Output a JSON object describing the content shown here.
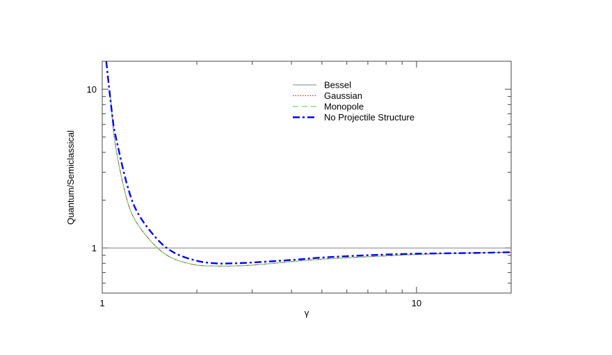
{
  "chart_data": {
    "type": "line",
    "xlabel": "γ",
    "ylabel": "Quantum/Semiclassical",
    "xscale": "log",
    "yscale": "log",
    "xlim": [
      1,
      20
    ],
    "ylim": [
      0.52,
      15
    ],
    "x_tick_labels": [
      {
        "value": 1,
        "label": "1"
      },
      {
        "value": 10,
        "label": "10"
      }
    ],
    "y_tick_labels": [
      {
        "value": 1,
        "label": "1"
      },
      {
        "value": 10,
        "label": "10"
      }
    ],
    "reference_line": {
      "y": 1,
      "color": "#808080"
    },
    "legend_position": "top-right",
    "series": [
      {
        "name": "Bessel",
        "style": "solid",
        "color": "#808080",
        "x": [
          1.06,
          1.1,
          1.2,
          1.3,
          1.5,
          1.7,
          2.0,
          2.3,
          2.6,
          3.0,
          4.0,
          5.0,
          7.0,
          10.0,
          15.0,
          20.0
        ],
        "y": [
          9.5,
          4.5,
          2.0,
          1.4,
          1.0,
          0.85,
          0.78,
          0.77,
          0.77,
          0.78,
          0.82,
          0.85,
          0.88,
          0.91,
          0.93,
          0.94
        ]
      },
      {
        "name": "Gaussian",
        "style": "dotted",
        "color": "#ff0000",
        "x": [
          1.06,
          1.1,
          1.2,
          1.3,
          1.5,
          1.7,
          2.0,
          2.3,
          2.6,
          3.0,
          4.0,
          5.0,
          7.0,
          10.0,
          15.0,
          20.0
        ],
        "y": [
          9.5,
          4.5,
          2.0,
          1.4,
          1.0,
          0.85,
          0.78,
          0.77,
          0.77,
          0.78,
          0.82,
          0.85,
          0.88,
          0.91,
          0.93,
          0.94
        ]
      },
      {
        "name": "Monopole",
        "style": "dashed",
        "color": "#66dd66",
        "x": [
          1.06,
          1.1,
          1.2,
          1.3,
          1.5,
          1.7,
          2.0,
          2.3,
          2.6,
          3.0,
          4.0,
          5.0,
          7.0,
          10.0,
          15.0,
          20.0
        ],
        "y": [
          9.5,
          4.5,
          2.0,
          1.4,
          1.0,
          0.85,
          0.78,
          0.77,
          0.77,
          0.78,
          0.82,
          0.85,
          0.88,
          0.91,
          0.93,
          0.94
        ]
      },
      {
        "name": "No Projectile Structure",
        "style": "dashdot",
        "color": "#0000ff",
        "x": [
          1.03,
          1.05,
          1.08,
          1.1,
          1.2,
          1.3,
          1.5,
          1.7,
          2.0,
          2.3,
          2.6,
          3.0,
          4.0,
          5.0,
          7.0,
          10.0,
          15.0,
          20.0
        ],
        "y": [
          15.0,
          10.5,
          6.5,
          5.2,
          2.5,
          1.65,
          1.13,
          0.93,
          0.83,
          0.8,
          0.8,
          0.81,
          0.84,
          0.87,
          0.9,
          0.92,
          0.93,
          0.94
        ]
      }
    ]
  }
}
